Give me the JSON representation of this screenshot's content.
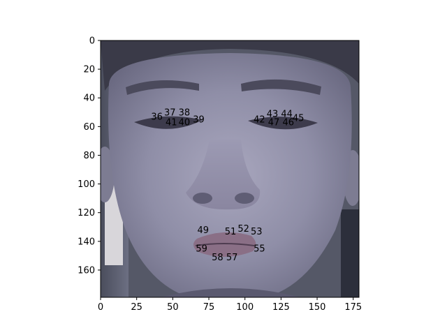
{
  "chart_data": {
    "type": "scatter",
    "title": "",
    "xlabel": "",
    "ylabel": "",
    "xlim": [
      0,
      179
    ],
    "ylim": [
      179,
      0
    ],
    "y_axis_inverted": true,
    "grid": false,
    "legend": "none",
    "background": "face-photo",
    "x_ticks": [
      "0",
      "25",
      "50",
      "75",
      "100",
      "125",
      "150",
      "175"
    ],
    "y_ticks": [
      "0",
      "20",
      "40",
      "60",
      "80",
      "100",
      "120",
      "140",
      "160"
    ],
    "landmarks": [
      {
        "label": "36",
        "x": 39,
        "y": 53
      },
      {
        "label": "37",
        "x": 48,
        "y": 50
      },
      {
        "label": "38",
        "x": 58,
        "y": 50
      },
      {
        "label": "39",
        "x": 68,
        "y": 55
      },
      {
        "label": "40",
        "x": 58,
        "y": 57
      },
      {
        "label": "41",
        "x": 49,
        "y": 57
      },
      {
        "label": "42",
        "x": 110,
        "y": 55
      },
      {
        "label": "43",
        "x": 119,
        "y": 51
      },
      {
        "label": "44",
        "x": 129,
        "y": 51
      },
      {
        "label": "45",
        "x": 137,
        "y": 54
      },
      {
        "label": "46",
        "x": 130,
        "y": 57
      },
      {
        "label": "47",
        "x": 120,
        "y": 57
      },
      {
        "label": "49",
        "x": 71,
        "y": 132
      },
      {
        "label": "51",
        "x": 90,
        "y": 133
      },
      {
        "label": "52",
        "x": 99,
        "y": 131
      },
      {
        "label": "53",
        "x": 108,
        "y": 133
      },
      {
        "label": "55",
        "x": 110,
        "y": 145
      },
      {
        "label": "57",
        "x": 91,
        "y": 151
      },
      {
        "label": "58",
        "x": 81,
        "y": 151
      },
      {
        "label": "59",
        "x": 70,
        "y": 145
      }
    ]
  },
  "colors": {
    "text": "#000000",
    "axis": "#000000",
    "background": "#ffffff"
  }
}
